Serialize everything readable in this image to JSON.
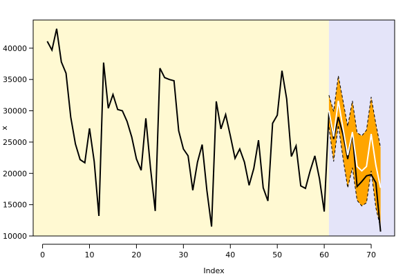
{
  "chart_data": {
    "type": "line",
    "xlabel": "Index",
    "ylabel": "x",
    "xlim": [
      -2,
      75
    ],
    "ylim": [
      10000,
      44500
    ],
    "x_ticks": [
      0,
      10,
      20,
      30,
      40,
      50,
      60,
      70
    ],
    "y_ticks": [
      10000,
      15000,
      20000,
      25000,
      30000,
      35000,
      40000
    ],
    "regions": [
      {
        "name": "history",
        "x_range": [
          -2,
          61
        ],
        "color": "#FFF9D2"
      },
      {
        "name": "forecast",
        "x_range": [
          61,
          75
        ],
        "color": "#E4E4F9"
      }
    ],
    "series": [
      {
        "role": "actual",
        "color": "#000000",
        "x": [
          1,
          2,
          3,
          4,
          5,
          6,
          7,
          8,
          9,
          10,
          11,
          12,
          13,
          14,
          15,
          16,
          17,
          18,
          19,
          20,
          21,
          22,
          23,
          24,
          25,
          26,
          27,
          28,
          29,
          30,
          31,
          32,
          33,
          34,
          35,
          36,
          37,
          38,
          39,
          40,
          41,
          42,
          43,
          44,
          45,
          46,
          47,
          48,
          49,
          50,
          51,
          52,
          53,
          54,
          55,
          56,
          57,
          58,
          59,
          60,
          61,
          62,
          63,
          64,
          65,
          66,
          67,
          68,
          69,
          70,
          71,
          72
        ],
        "values": [
          41100,
          39700,
          43100,
          37800,
          36000,
          29000,
          24700,
          22200,
          21700,
          27200,
          21900,
          13200,
          37700,
          30400,
          32600,
          30200,
          30000,
          28300,
          25800,
          22300,
          20500,
          28800,
          20800,
          14000,
          36800,
          35300,
          35000,
          34800,
          26800,
          23900,
          22800,
          17300,
          21800,
          24600,
          17300,
          11500,
          31500,
          27100,
          29400,
          26000,
          22400,
          23900,
          21800,
          18100,
          20800,
          25300,
          17700,
          15600,
          28000,
          29300,
          36400,
          31900,
          22700,
          24400,
          18000,
          17600,
          20400,
          22800,
          19100,
          13900,
          29800,
          25500,
          29000,
          26200,
          22300,
          26300,
          17900,
          18700,
          19600,
          19800,
          18500,
          10700
        ]
      },
      {
        "role": "forecast",
        "color": "#FFFFFF",
        "x": [
          61,
          62,
          63,
          64,
          65,
          66,
          67,
          68,
          69,
          70,
          71,
          72
        ],
        "values": [
          30000,
          25900,
          31600,
          27200,
          22900,
          26600,
          21100,
          20400,
          21100,
          26300,
          21300,
          17700
        ]
      },
      {
        "role": "upper-bound",
        "color": "#000000",
        "x": [
          61,
          62,
          63,
          64,
          65,
          66,
          67,
          68,
          69,
          70,
          71,
          72
        ],
        "values": [
          32500,
          29900,
          35600,
          31600,
          27500,
          31600,
          26500,
          26000,
          26900,
          32200,
          27900,
          24100
        ]
      },
      {
        "role": "lower-bound",
        "color": "#000000",
        "x": [
          61,
          62,
          63,
          64,
          65,
          66,
          67,
          68,
          69,
          70,
          71,
          72
        ],
        "values": [
          27400,
          21900,
          27700,
          22400,
          17700,
          20900,
          15700,
          14800,
          15300,
          20400,
          14500,
          11300
        ]
      }
    ],
    "band_color": "#FFA500"
  }
}
